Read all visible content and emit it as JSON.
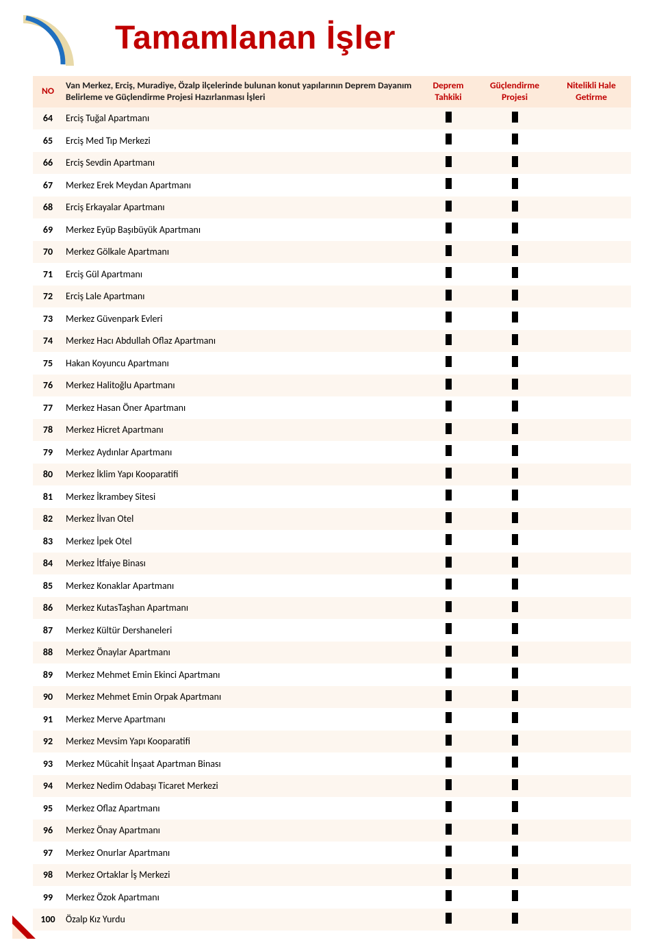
{
  "title": "Tamamlanan İşler",
  "colors": {
    "accent": "#c00000",
    "header_bg": "#fdeada",
    "row_odd": "#fdf6ef",
    "row_even": "#ffffff",
    "marker": "#000000",
    "logo_blue": "#1f6fbf",
    "logo_beige": "#e8d9a8",
    "corner_red": "#c00000"
  },
  "columns": {
    "no": "NO",
    "desc": "Van Merkez, Erciş, Muradiye, Özalp ilçelerinde bulunan konut yapılarının Deprem Dayanım Belirleme ve Güçlendirme Projesi Hazırlanması İşleri",
    "c1": "Deprem Tahkiki",
    "c2": "Güçlendirme Projesi",
    "c3": "Nitelikli Hale Getirme"
  },
  "rows": [
    {
      "no": "64",
      "desc": "Erciş Tuğal Apartmanı",
      "c1": true,
      "c2": true,
      "c3": false
    },
    {
      "no": "65",
      "desc": "Erciş Med Tıp Merkezi",
      "c1": true,
      "c2": true,
      "c3": false
    },
    {
      "no": "66",
      "desc": "Erciş Sevdin Apartmanı",
      "c1": true,
      "c2": true,
      "c3": false
    },
    {
      "no": "67",
      "desc": "Merkez Erek Meydan Apartmanı",
      "c1": true,
      "c2": true,
      "c3": false
    },
    {
      "no": "68",
      "desc": "Erciş Erkayalar Apartmanı",
      "c1": true,
      "c2": true,
      "c3": false
    },
    {
      "no": "69",
      "desc": "Merkez Eyüp Başıbüyük Apartmanı",
      "c1": true,
      "c2": true,
      "c3": false
    },
    {
      "no": "70",
      "desc": "Merkez Gölkale Apartmanı",
      "c1": true,
      "c2": true,
      "c3": false
    },
    {
      "no": "71",
      "desc": "Erciş Gül Apartmanı",
      "c1": true,
      "c2": true,
      "c3": false
    },
    {
      "no": "72",
      "desc": "Erciş Lale Apartmanı",
      "c1": true,
      "c2": true,
      "c3": false
    },
    {
      "no": "73",
      "desc": "Merkez Güvenpark Evleri",
      "c1": true,
      "c2": true,
      "c3": false
    },
    {
      "no": "74",
      "desc": "Merkez Hacı Abdullah Oflaz Apartmanı",
      "c1": true,
      "c2": true,
      "c3": false
    },
    {
      "no": "75",
      "desc": "Hakan Koyuncu Apartmanı",
      "c1": true,
      "c2": true,
      "c3": false
    },
    {
      "no": "76",
      "desc": "Merkez Halitoğlu Apartmanı",
      "c1": true,
      "c2": true,
      "c3": false
    },
    {
      "no": "77",
      "desc": "Merkez Hasan Öner Apartmanı",
      "c1": true,
      "c2": true,
      "c3": false
    },
    {
      "no": "78",
      "desc": "Merkez Hicret Apartmanı",
      "c1": true,
      "c2": true,
      "c3": false
    },
    {
      "no": "79",
      "desc": "Merkez Aydınlar Apartmanı",
      "c1": true,
      "c2": true,
      "c3": false
    },
    {
      "no": "80",
      "desc": "Merkez İklim Yapı Kooparatifi",
      "c1": true,
      "c2": true,
      "c3": false
    },
    {
      "no": "81",
      "desc": "Merkez İkrambey Sitesi",
      "c1": true,
      "c2": true,
      "c3": false
    },
    {
      "no": "82",
      "desc": "Merkez İlvan Otel",
      "c1": true,
      "c2": true,
      "c3": false
    },
    {
      "no": "83",
      "desc": "Merkez İpek Otel",
      "c1": true,
      "c2": true,
      "c3": false
    },
    {
      "no": "84",
      "desc": "Merkez İtfaiye Binası",
      "c1": true,
      "c2": true,
      "c3": false
    },
    {
      "no": "85",
      "desc": "Merkez Konaklar Apartmanı",
      "c1": true,
      "c2": true,
      "c3": false
    },
    {
      "no": "86",
      "desc": "Merkez KutasTaşhan Apartmanı",
      "c1": true,
      "c2": true,
      "c3": false
    },
    {
      "no": "87",
      "desc": "Merkez Kültür Dershaneleri",
      "c1": true,
      "c2": true,
      "c3": false
    },
    {
      "no": "88",
      "desc": "Merkez Önaylar Apartmanı",
      "c1": true,
      "c2": true,
      "c3": false
    },
    {
      "no": "89",
      "desc": "Merkez Mehmet Emin Ekinci Apartmanı",
      "c1": true,
      "c2": true,
      "c3": false
    },
    {
      "no": "90",
      "desc": "Merkez Mehmet Emin Orpak Apartmanı",
      "c1": true,
      "c2": true,
      "c3": false
    },
    {
      "no": "91",
      "desc": "Merkez Merve Apartmanı",
      "c1": true,
      "c2": true,
      "c3": false
    },
    {
      "no": "92",
      "desc": "Merkez Mevsim Yapı Kooparatifi",
      "c1": true,
      "c2": true,
      "c3": false
    },
    {
      "no": "93",
      "desc": "Merkez Mücahit İnşaat Apartman Binası",
      "c1": true,
      "c2": true,
      "c3": false
    },
    {
      "no": "94",
      "desc": "Merkez Nedim Odabaşı Ticaret Merkezi",
      "c1": true,
      "c2": true,
      "c3": false
    },
    {
      "no": "95",
      "desc": "Merkez Oflaz Apartmanı",
      "c1": true,
      "c2": true,
      "c3": false
    },
    {
      "no": "96",
      "desc": "Merkez Önay Apartmanı",
      "c1": true,
      "c2": true,
      "c3": false
    },
    {
      "no": "97",
      "desc": "Merkez Onurlar Apartmanı",
      "c1": true,
      "c2": true,
      "c3": false
    },
    {
      "no": "98",
      "desc": "Merkez Ortaklar İş Merkezi",
      "c1": true,
      "c2": true,
      "c3": false
    },
    {
      "no": "99",
      "desc": "Merkez Özok Apartmanı",
      "c1": true,
      "c2": true,
      "c3": false
    },
    {
      "no": "100",
      "desc": "Özalp Kız Yurdu",
      "c1": true,
      "c2": true,
      "c3": false
    }
  ]
}
